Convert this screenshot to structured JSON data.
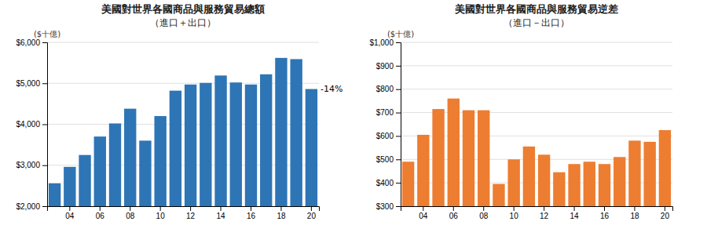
{
  "chart_data": [
    {
      "type": "bar",
      "title": "美國對世界各國商品與服務貿易總額",
      "subtitle": "（進口＋出口）",
      "ylabel": "($十億)",
      "categories": [
        null,
        "04",
        null,
        "06",
        null,
        "08",
        null,
        "10",
        null,
        "12",
        null,
        "14",
        null,
        "16",
        null,
        "18",
        null,
        "20"
      ],
      "values": [
        2560,
        2960,
        3250,
        3700,
        4020,
        4380,
        3600,
        4200,
        4820,
        4970,
        5010,
        5190,
        5020,
        4970,
        5220,
        5620,
        5590,
        4860
      ],
      "color": "#2e75b6",
      "ylim": [
        2000,
        6000
      ],
      "yticks": [
        {
          "value": 2000,
          "label": "$2,000"
        },
        {
          "value": 3000,
          "label": "$3,000"
        },
        {
          "value": 4000,
          "label": "$4,000"
        },
        {
          "value": 5000,
          "label": "$5,000"
        },
        {
          "value": 6000,
          "label": "$6,000"
        }
      ],
      "grid": true,
      "annotations": [
        {
          "text": "-14%",
          "category": "20"
        }
      ]
    },
    {
      "type": "bar",
      "title": "美國對世界各國商品與服務貿易逆差",
      "subtitle": "（進口－出口）",
      "ylabel": "($十億)",
      "categories": [
        null,
        "04",
        null,
        "06",
        null,
        "08",
        null,
        "10",
        null,
        "12",
        null,
        "14",
        null,
        "16",
        null,
        "18",
        null,
        "20"
      ],
      "values": [
        490,
        605,
        715,
        760,
        710,
        710,
        395,
        500,
        555,
        520,
        445,
        480,
        490,
        480,
        510,
        580,
        575,
        625
      ],
      "color": "#ed7d31",
      "ylim": [
        300,
        1000
      ],
      "yticks": [
        {
          "value": 300,
          "label": "$300"
        },
        {
          "value": 400,
          "label": "$400"
        },
        {
          "value": 500,
          "label": "$500"
        },
        {
          "value": 600,
          "label": "$600"
        },
        {
          "value": 700,
          "label": "$700"
        },
        {
          "value": 800,
          "label": "$800"
        },
        {
          "value": 900,
          "label": "$900"
        },
        {
          "value": 1000,
          "label": "$1,000"
        }
      ],
      "grid": true
    }
  ]
}
